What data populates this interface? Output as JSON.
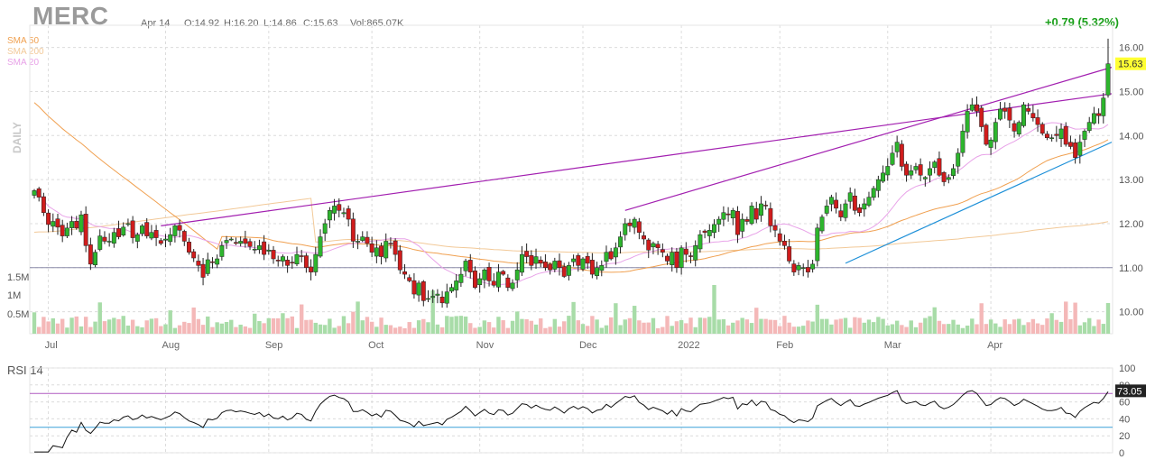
{
  "header": {
    "ticker": "MERC",
    "date": "Apr 14",
    "open": "O:14.92",
    "high": "H:16.20",
    "low": "L:14.86",
    "close": "C:15.63",
    "volume": "Vol:865.07K",
    "change": "+0.79 (5.32%)"
  },
  "legend": {
    "sma50": "SMA 50",
    "sma200": "SMA 200",
    "sma20": "SMA 20",
    "timeframe": "DAILY"
  },
  "colors": {
    "up": "#2db52d",
    "down": "#d01c1c",
    "sma50": "#f0a050",
    "sma200": "#f2c998",
    "sma20": "#e8a2e8",
    "trendline": "#a21fb0",
    "support": "#1e90d8",
    "volume_up": "#a8dca8",
    "volume_down": "#f4b8b8"
  },
  "chart_data": [
    {
      "type": "candlestick",
      "x_tick_labels": [
        "Jul",
        "Aug",
        "Sep",
        "Oct",
        "Nov",
        "Dec",
        "2022",
        "Feb",
        "Mar",
        "Apr"
      ],
      "y_tick_labels": [
        "10.00",
        "11.00",
        "12.00",
        "13.00",
        "14.00",
        "15.00",
        "16.00"
      ],
      "ylim": [
        9.5,
        16.3
      ],
      "last_price_label": "15.63",
      "horizontal_level": 11.0,
      "volume_tick_labels": [
        "0.5M",
        "1M",
        "1.5M"
      ],
      "closes": [
        12.75,
        12.6,
        12.25,
        11.98,
        12.05,
        11.92,
        11.72,
        11.9,
        12.05,
        11.9,
        12.2,
        11.5,
        11.08,
        11.35,
        11.72,
        11.6,
        11.6,
        11.8,
        11.7,
        11.92,
        12.0,
        11.68,
        11.75,
        11.95,
        11.72,
        11.8,
        11.68,
        11.55,
        11.65,
        11.75,
        11.95,
        11.85,
        11.6,
        11.35,
        11.22,
        11.05,
        10.78,
        11.18,
        11.12,
        11.2,
        11.5,
        11.62,
        11.65,
        11.55,
        11.6,
        11.55,
        11.48,
        11.42,
        11.5,
        11.3,
        11.4,
        11.2,
        11.15,
        11.25,
        11.05,
        11.12,
        11.3,
        11.25,
        11.0,
        10.9,
        11.3,
        11.7,
        12.0,
        12.3,
        12.4,
        12.3,
        12.25,
        12.1,
        11.6,
        11.6,
        11.7,
        11.55,
        11.35,
        11.45,
        11.25,
        11.6,
        11.55,
        11.3,
        10.95,
        10.85,
        10.7,
        10.4,
        10.65,
        10.25,
        10.3,
        10.35,
        10.4,
        10.2,
        10.45,
        10.55,
        10.7,
        10.85,
        11.15,
        10.9,
        10.55,
        10.75,
        10.95,
        10.7,
        10.6,
        10.9,
        10.85,
        10.55,
        10.65,
        10.95,
        11.3,
        11.25,
        11.05,
        11.25,
        11.1,
        11.0,
        10.95,
        11.15,
        11.0,
        10.8,
        11.05,
        11.2,
        11.05,
        11.2,
        11.1,
        10.85,
        11.0,
        11.05,
        11.35,
        11.2,
        11.45,
        11.7,
        12.0,
        11.95,
        12.1,
        11.8,
        11.65,
        11.4,
        11.55,
        11.45,
        11.35,
        11.15,
        11.35,
        11.0,
        11.45,
        11.3,
        11.25,
        11.5,
        11.75,
        11.8,
        11.85,
        11.98,
        12.1,
        12.25,
        12.2,
        12.3,
        11.75,
        12.1,
        12.05,
        12.4,
        12.1,
        12.45,
        12.4,
        11.95,
        11.85,
        11.6,
        11.5,
        11.15,
        10.9,
        11.05,
        11.0,
        10.9,
        11.08,
        11.9,
        12.15,
        12.4,
        12.6,
        12.35,
        12.15,
        12.45,
        12.7,
        12.3,
        12.25,
        12.45,
        12.6,
        12.8,
        13.0,
        13.15,
        13.3,
        13.6,
        13.85,
        13.3,
        13.1,
        13.2,
        13.3,
        13.1,
        13.05,
        13.25,
        13.4,
        13.1,
        12.95,
        13.05,
        13.25,
        13.6,
        14.1,
        14.55,
        14.7,
        14.55,
        14.2,
        13.8,
        13.9,
        14.3,
        14.6,
        14.55,
        14.35,
        14.1,
        14.3,
        14.7,
        14.55,
        14.4,
        14.25,
        14.05,
        13.95,
        13.95,
        14.0,
        14.15,
        13.8,
        13.75,
        13.5,
        13.85,
        14.1,
        14.3,
        14.5,
        14.45,
        14.85,
        15.63
      ],
      "rsi": {
        "label": "RSI 14",
        "value_label": "73.05",
        "y_tick_labels": [
          "0",
          "20",
          "40",
          "60",
          "80",
          "100"
        ],
        "overbought": 70,
        "oversold": 30
      }
    }
  ]
}
